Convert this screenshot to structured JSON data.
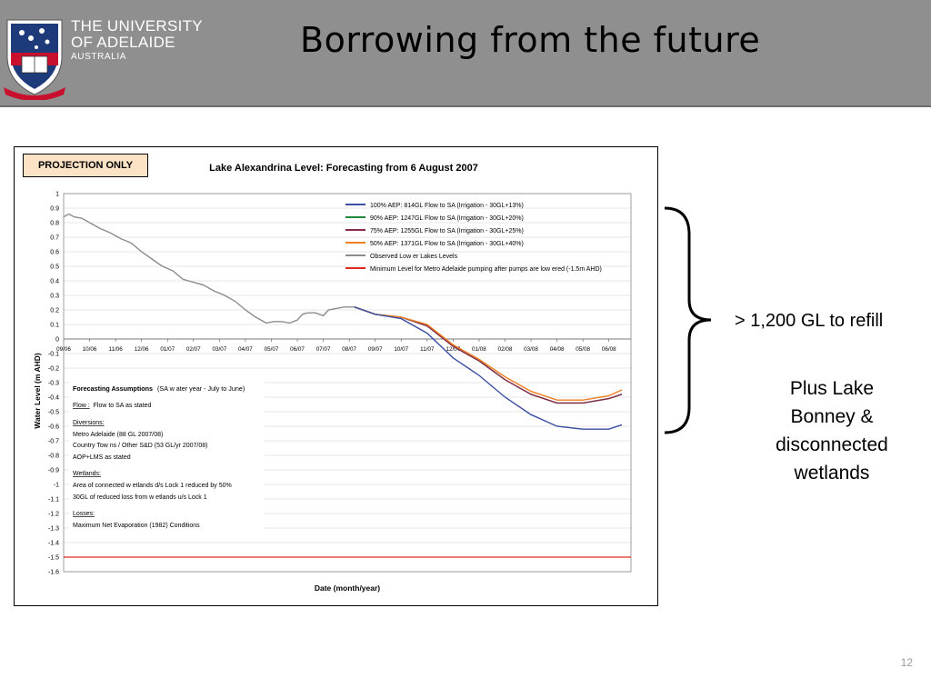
{
  "header": {
    "university_line1": "THE UNIVERSITY",
    "university_line2": "OF ADELAIDE",
    "university_line3": "AUSTRALIA",
    "motto": "SUB CRUCE LUMEN",
    "slide_title": "Borrowing from the future"
  },
  "colors": {
    "header_bg": "#8f8f8f",
    "series_100": "#3b4fa3",
    "series_90": "#1f8a3a",
    "series_75": "#8a2b4e",
    "series_50": "#ef7d22",
    "observed": "#8c8c8c",
    "minimum": "#e0291f",
    "badge_bg": "#fde3c6"
  },
  "chart_data": {
    "type": "line",
    "badge": "PROJECTION ONLY",
    "title": "Lake Alexandrina Level: Forecasting from 6 August 2007",
    "xlabel": "Date (month/year)",
    "ylabel": "Water Level (m AHD)",
    "ylim": [
      -1.6,
      1
    ],
    "y_ticks": [
      "1",
      "0.9",
      "0.8",
      "0.7",
      "0.6",
      "0.5",
      "0.4",
      "0.3",
      "0.2",
      "0.1",
      "0",
      "-0.1",
      "-0.2",
      "-0.3",
      "-0.4",
      "-0.5",
      "-0.6",
      "-0.7",
      "-0.8",
      "-0.9",
      "-1",
      "-1.1",
      "-1.2",
      "-1.3",
      "-1.4",
      "-1.5",
      "-1.6"
    ],
    "x_ticks": [
      "09/06",
      "10/06",
      "11/06",
      "12/06",
      "01/07",
      "02/07",
      "03/07",
      "04/07",
      "05/07",
      "06/07",
      "07/07",
      "08/07",
      "09/07",
      "10/07",
      "11/07",
      "12/07",
      "01/08",
      "02/08",
      "03/08",
      "04/08",
      "05/08",
      "06/08"
    ],
    "grid": true,
    "legend_position": "top-right",
    "observed": {
      "name": "Observed Low er Lakes Levels",
      "x": [
        0,
        0.2,
        0.4,
        0.7,
        1,
        1.4,
        1.8,
        2.2,
        2.6,
        3,
        3.4,
        3.8,
        4.2,
        4.6,
        5,
        5.4,
        5.8,
        6.2,
        6.6,
        7,
        7.4,
        7.8,
        8.1,
        8.4,
        8.7,
        9,
        9.2,
        9.4,
        9.7,
        10,
        10.2,
        10.5,
        10.8,
        11,
        11.2
      ],
      "values": [
        0.84,
        0.86,
        0.84,
        0.83,
        0.8,
        0.76,
        0.73,
        0.69,
        0.66,
        0.6,
        0.55,
        0.5,
        0.47,
        0.41,
        0.39,
        0.37,
        0.33,
        0.3,
        0.26,
        0.2,
        0.15,
        0.11,
        0.12,
        0.12,
        0.11,
        0.13,
        0.17,
        0.18,
        0.18,
        0.16,
        0.2,
        0.21,
        0.22,
        0.22,
        0.22
      ]
    },
    "series": [
      {
        "name": "100% AEP: 814GL Flow to SA (Irrigation - 30GL+13%)",
        "x": [
          11.2,
          12,
          13,
          14,
          15,
          16,
          17,
          18,
          19,
          20,
          21,
          21.5
        ],
        "values": [
          0.22,
          0.17,
          0.14,
          0.04,
          -0.13,
          -0.25,
          -0.4,
          -0.52,
          -0.6,
          -0.62,
          -0.62,
          -0.59
        ]
      },
      {
        "name": "90% AEP: 1247GL Flow to SA (Irrigation - 30GL+20%)",
        "x": [
          11.2,
          12,
          13,
          14,
          15,
          16,
          17,
          18,
          19,
          20,
          21,
          21.5
        ],
        "values": [
          0.22,
          0.17,
          0.15,
          0.09,
          -0.05,
          -0.15,
          -0.28,
          -0.38,
          -0.44,
          -0.44,
          -0.41,
          -0.38
        ]
      },
      {
        "name": "75% AEP: 1255GL Flow to SA (Irrigation - 30GL+25%)",
        "x": [
          11.2,
          12,
          13,
          14,
          15,
          16,
          17,
          18,
          19,
          20,
          21,
          21.5
        ],
        "values": [
          0.22,
          0.17,
          0.15,
          0.09,
          -0.05,
          -0.15,
          -0.28,
          -0.38,
          -0.44,
          -0.44,
          -0.41,
          -0.38
        ]
      },
      {
        "name": "50% AEP: 1371GL Flow to SA (Irrigation - 30GL+40%)",
        "x": [
          11.2,
          12,
          13,
          14,
          15,
          16,
          17,
          18,
          19,
          20,
          21,
          21.5
        ],
        "values": [
          0.22,
          0.17,
          0.15,
          0.1,
          -0.04,
          -0.14,
          -0.26,
          -0.36,
          -0.42,
          -0.42,
          -0.39,
          -0.35
        ]
      },
      {
        "name": "Minimum Level for Metro Adelaide pumping after pumps are low ered (-1.5m AHD)",
        "x": [
          0,
          21.5
        ],
        "values": [
          -1.5,
          -1.5
        ]
      }
    ],
    "assumptions": {
      "heading": "Forecasting Assumptions",
      "heading_note": "(SA w ater year - July to June)",
      "flow_label": "Flow :",
      "flow_text": "Flow to SA as stated",
      "diversions_label": "Diversions:",
      "diversions_1": "Metro Adelaide (88 GL 2007/08)",
      "diversions_2": "Country Tow ns / Other S&D (53 GL/yr 2007/08)",
      "diversions_3": "AOP+LMS as stated",
      "wetlands_label": "Wetlands:",
      "wetlands_1": "Area of connected w etlands d/s Lock 1 reduced by 50%",
      "wetlands_2": "30GL of reduced loss from w etlands u/s Lock 1",
      "losses_label": "Losses:",
      "losses_1": "Maximum Net Evaporation (1982) Conditions"
    }
  },
  "annotations": {
    "refill": "> 1,200 GL to refill",
    "plus_line1": "Plus Lake",
    "plus_line2": "Bonney &",
    "plus_line3": "disconnected",
    "plus_line4": "wetlands"
  },
  "footer": {
    "page_number": "12"
  }
}
